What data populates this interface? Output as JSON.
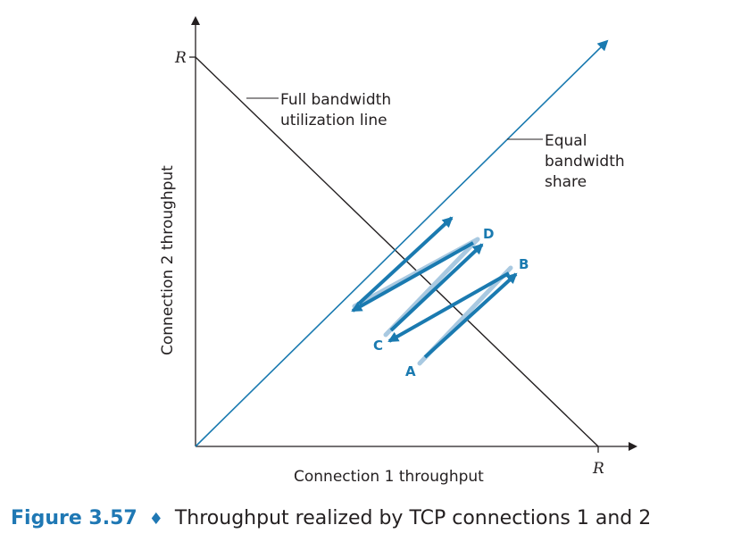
{
  "diagram": {
    "x_axis_label": "Connection 1 throughput",
    "y_axis_label": "Connection 2 throughput",
    "x_max_label": "R",
    "y_max_label": "R",
    "full_line_label_1": "Full bandwidth",
    "full_line_label_2": "utilization line",
    "equal_line_label_1": "Equal",
    "equal_line_label_2": "bandwidth",
    "equal_line_label_3": "share",
    "points": {
      "a": "A",
      "b": "B",
      "c": "C",
      "d": "D"
    },
    "colors": {
      "line": "#231f20",
      "dark_blue": "#1a7ab0",
      "light_blue": "#a9c9e1"
    }
  },
  "caption": {
    "number": "Figure 3.57",
    "separator": "♦",
    "text": "Throughput realized by TCP connections 1 and 2"
  }
}
